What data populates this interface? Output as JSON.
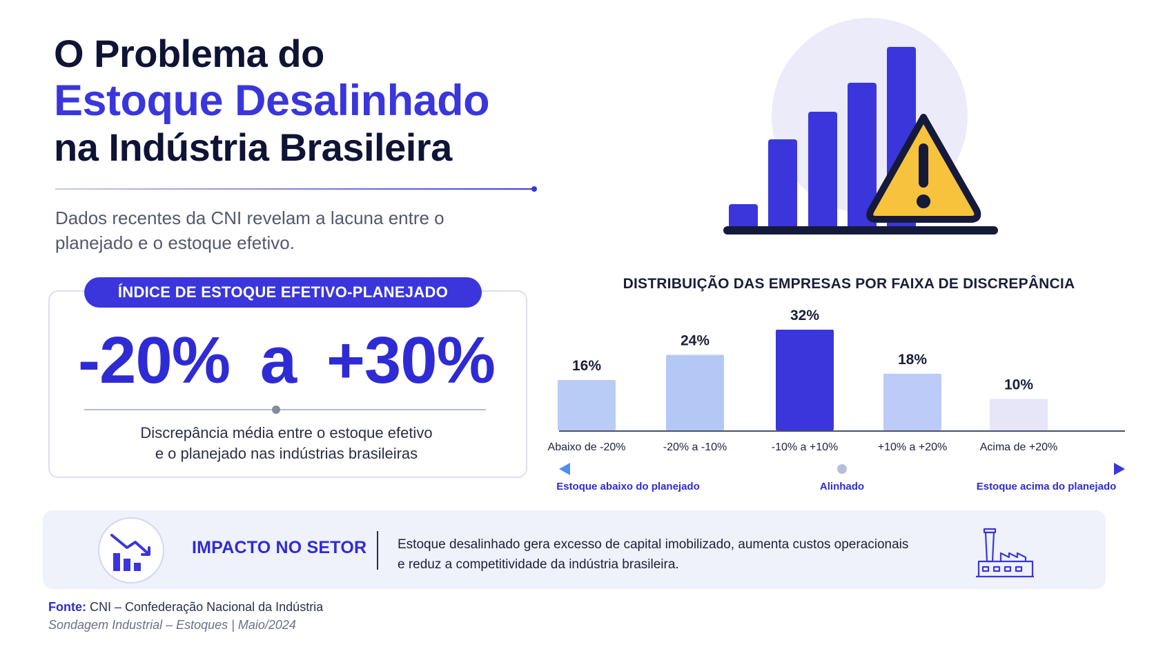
{
  "title": {
    "line1": "O Problema do",
    "line2": "Estoque Desalinhado",
    "line3": "na Indústria Brasileira"
  },
  "subtitle": "Dados recentes da CNI revelam a lacuna entre o planejado e o estoque efetivo.",
  "hero": {
    "icons": [
      "bar-chart-icon",
      "warning-icon"
    ],
    "colors": {
      "bars": "#3a36dc",
      "warning": "#f7c23c",
      "outline": "#161a3a"
    }
  },
  "index_card": {
    "label": "ÍNDICE DE ESTOQUE EFETIVO-PLANEJADO",
    "range": "-20%  a  +30%",
    "description_line1": "Discrepância média entre o estoque efetivo",
    "description_line2": "e o planejado nas indústrias brasileiras"
  },
  "chart_data": {
    "type": "bar",
    "title": "DISTRIBUIÇÃO DAS EMPRESAS POR FAIXA DE DISCREPÂNCIA",
    "categories": [
      "Abaixo de -20%",
      "-20% a -10%",
      "-10% a +10%",
      "+10% a +20%",
      "Acima de +20%"
    ],
    "values": [
      16,
      24,
      32,
      18,
      10
    ],
    "value_labels": [
      "16%",
      "24%",
      "32%",
      "18%",
      "10%"
    ],
    "bar_colors": [
      "#b8ccf6",
      "#b4c8f6",
      "#3a36dc",
      "#bccbf7",
      "#e6e6f8"
    ],
    "ylim": [
      0,
      32
    ],
    "grid": false,
    "scale": {
      "left": "Estoque abaixo do planejado",
      "center": "Alinhado",
      "right": "Estoque acima do planejado"
    }
  },
  "impact": {
    "title": "IMPACTO NO SETOR",
    "text_line1": "Estoque desalinhado gera excesso de capital imobilizado, aumenta custos operacionais",
    "text_line2": "e reduz a competitividade da indústria brasileira.",
    "icons": [
      "trend-down-icon",
      "factory-icon"
    ]
  },
  "source": {
    "label": "Fonte:",
    "value": "CNI – Confederação Nacional da Indústria",
    "sub": "Sondagem Industrial – Estoques  |  Maio/2024"
  },
  "colors": {
    "accent": "#3a36dc",
    "dark": "#0f1435",
    "muted": "#525870",
    "band": "#eff1fb"
  }
}
